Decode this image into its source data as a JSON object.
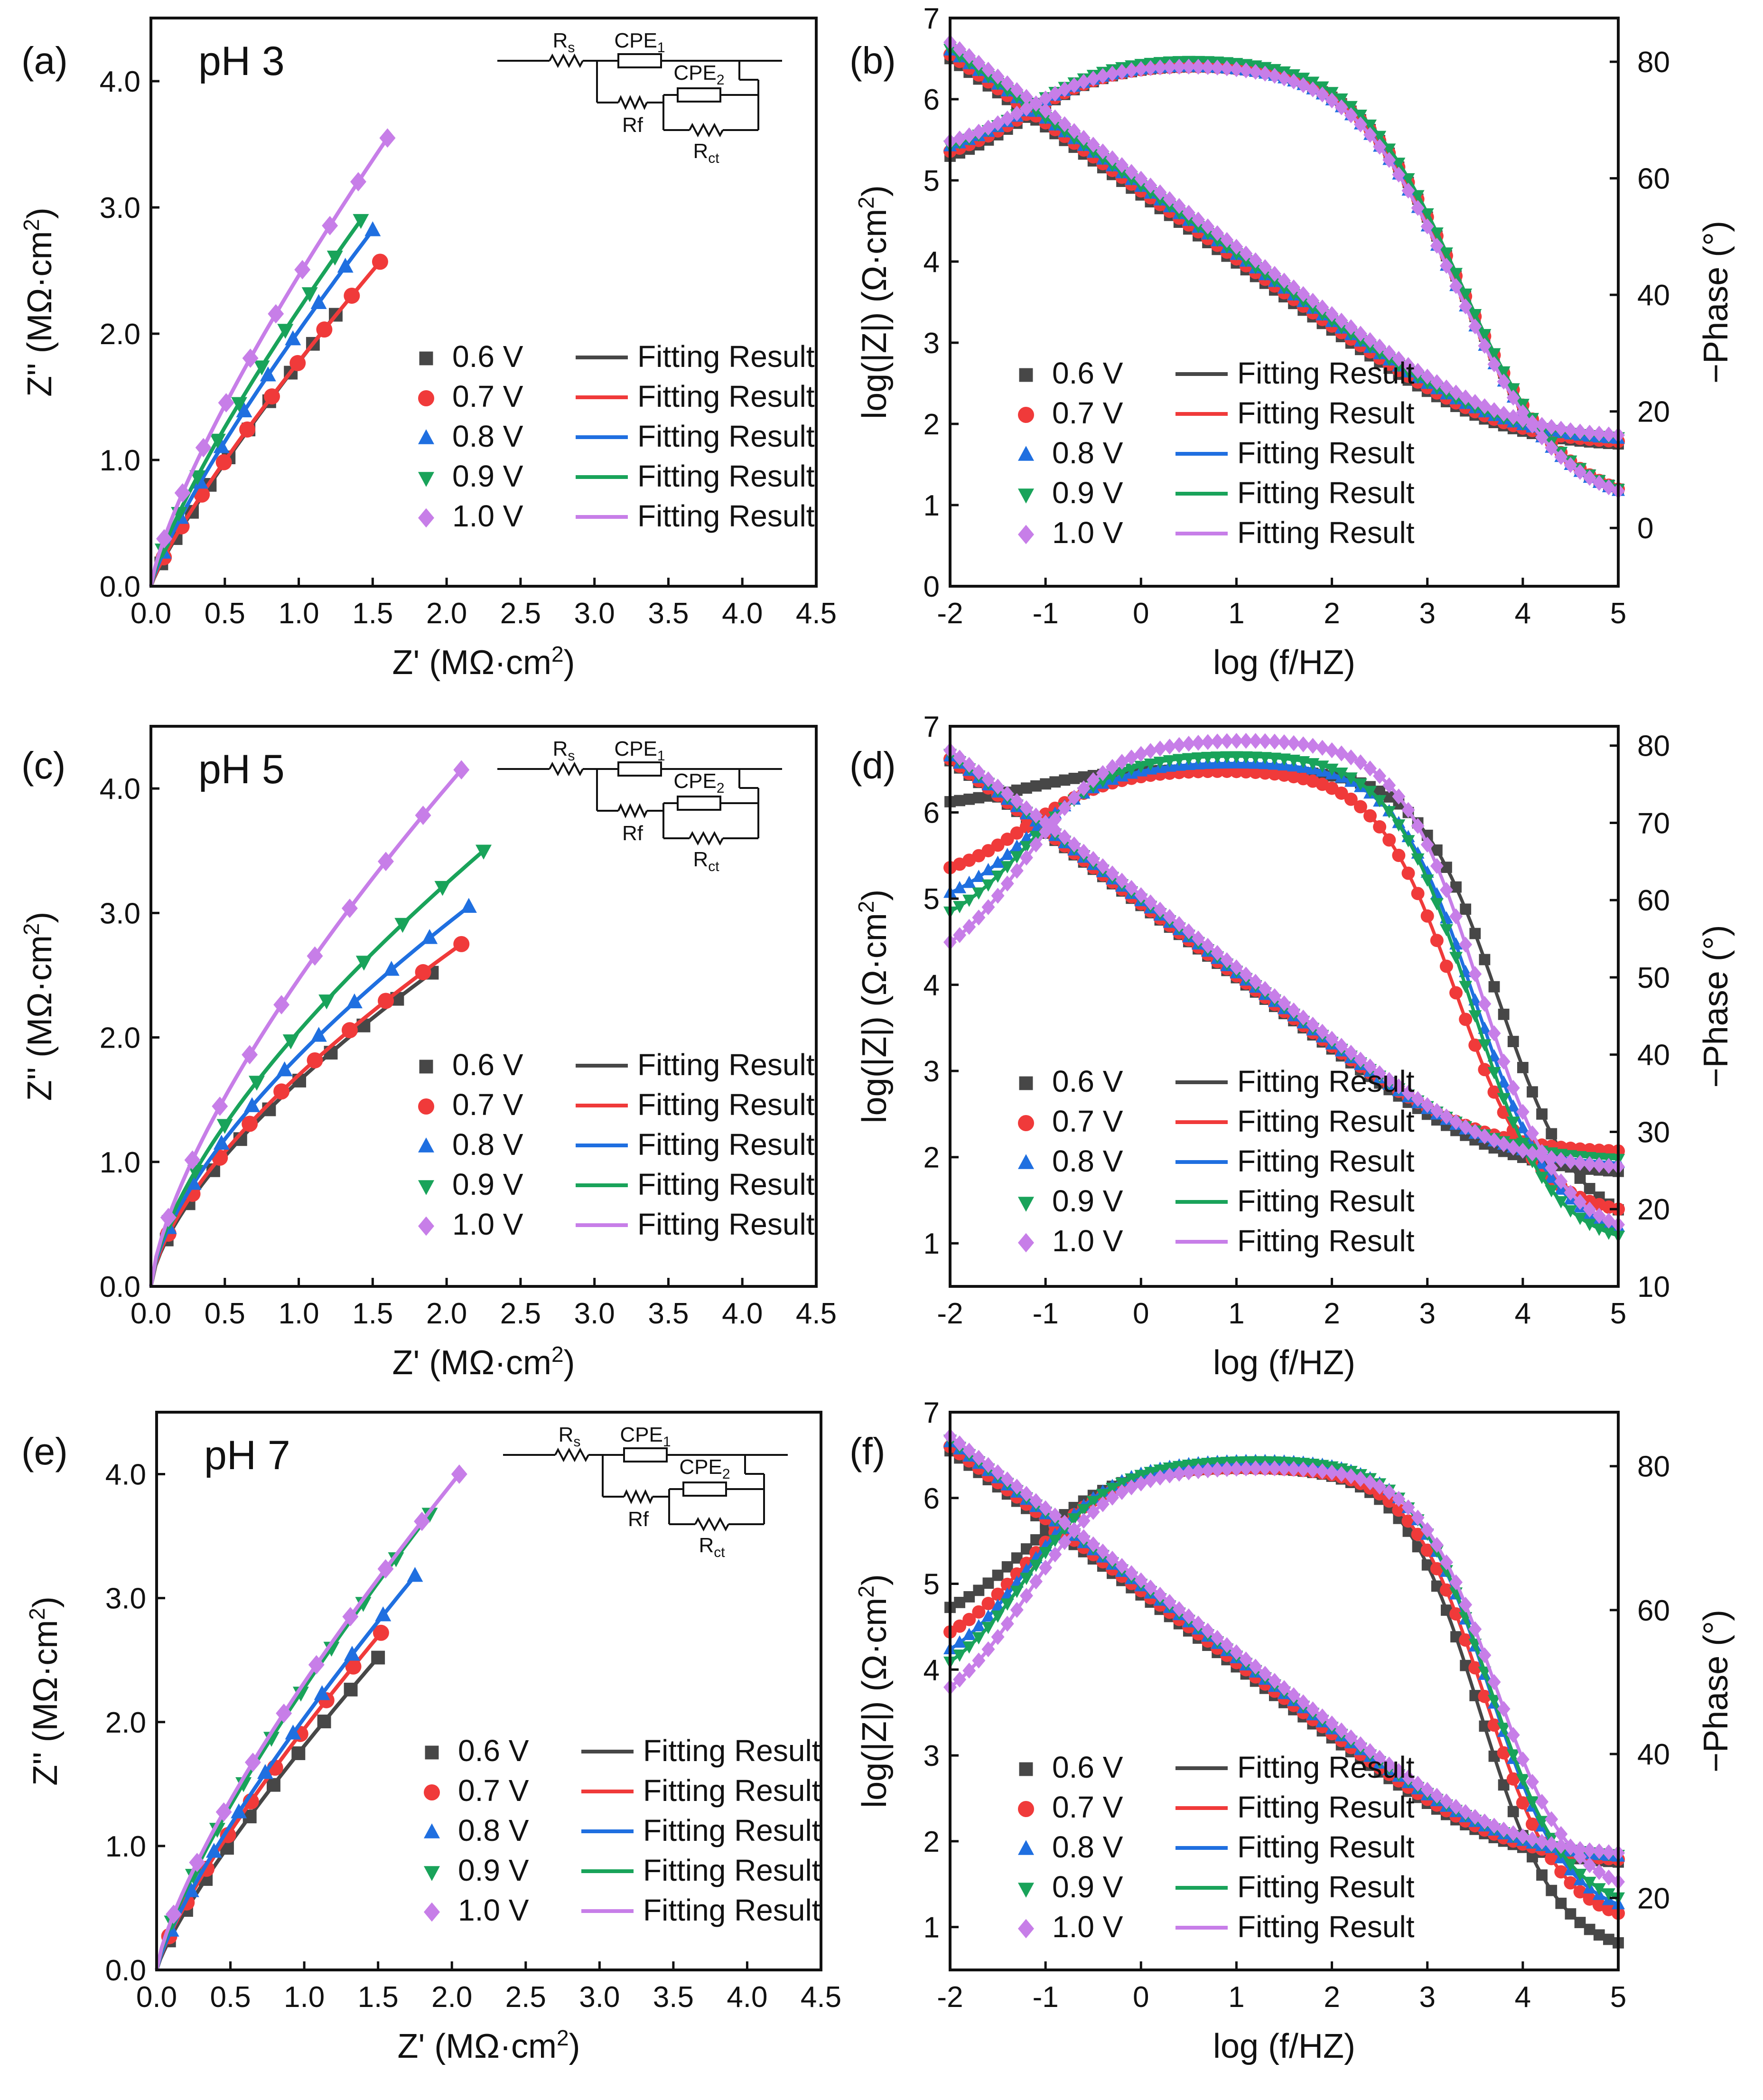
{
  "colors": {
    "0.6 V": "#474747",
    "0.7 V": "#f03a3a",
    "0.8 V": "#1f6fe0",
    "0.9 V": "#19a35a",
    "1.0 V": "#c77ee8"
  },
  "legend": {
    "series": [
      "0.6 V",
      "0.7 V",
      "0.8 V",
      "0.9 V",
      "1.0 V"
    ],
    "fit_label": "Fitting Result",
    "markers": [
      "square",
      "circle",
      "triangle-up",
      "triangle-down",
      "diamond"
    ]
  },
  "circuit": {
    "rs": "Rs",
    "cpe1": "CPE1",
    "cpe2": "CPE2",
    "rf": "Rf",
    "rct": "Rct"
  },
  "chart_data": [
    {
      "panel": "(a)",
      "type": "scatter",
      "title": "pH 3",
      "xlabel": "Z' (MΩ·cm²)",
      "ylabel": "Z'' (MΩ·cm²)",
      "xlim": [
        0,
        4.5
      ],
      "ylim": [
        0,
        4.5
      ],
      "xticks": [
        "0.0",
        "0.5",
        "1.0",
        "1.5",
        "2.0",
        "2.5",
        "3.0",
        "3.5",
        "4.0",
        "4.5"
      ],
      "yticks": [
        "0.0",
        "1.0",
        "2.0",
        "3.0",
        "4.0"
      ],
      "series": [
        {
          "name": "0.6 V",
          "end": [
            1.25,
            2.15
          ],
          "exp": 0.86
        },
        {
          "name": "0.7 V",
          "end": [
            1.55,
            2.57
          ],
          "exp": 0.84
        },
        {
          "name": "0.8 V",
          "end": [
            1.5,
            2.82
          ],
          "exp": 0.82
        },
        {
          "name": "0.9 V",
          "end": [
            1.42,
            2.9
          ],
          "exp": 0.8
        },
        {
          "name": "1.0 V",
          "end": [
            1.6,
            3.55
          ],
          "exp": 0.78
        }
      ]
    },
    {
      "panel": "(b)",
      "type": "line",
      "title": "",
      "xlabel": "log (f/HZ)",
      "ylabel": "log(|Z|) (Ω·cm²)",
      "y2label": "−Phase (°)",
      "xlim": [
        -2,
        5
      ],
      "ylim": [
        0,
        7
      ],
      "y2lim": [
        -10,
        87.5
      ],
      "xticks": [
        "-2",
        "-1",
        "0",
        "1",
        "2",
        "3",
        "4",
        "5"
      ],
      "yticks": [
        "0",
        "1",
        "2",
        "3",
        "4",
        "5",
        "6",
        "7"
      ],
      "y2ticks": [
        "0",
        "20",
        "40",
        "60",
        "80"
      ],
      "series": [
        {
          "name": "0.6 V",
          "Z_low": 6.5,
          "Rs": 1.72,
          "ph_low": 61,
          "ph_mid": 80,
          "ph_high": 3,
          "fc": 3.35,
          "ph_w": 0.55
        },
        {
          "name": "0.7 V",
          "Z_low": 6.55,
          "Rs": 1.75,
          "ph_low": 62,
          "ph_mid": 80,
          "ph_high": 3,
          "fc": 3.35,
          "ph_w": 0.55
        },
        {
          "name": "0.8 V",
          "Z_low": 6.6,
          "Rs": 1.78,
          "ph_low": 63,
          "ph_mid": 80,
          "ph_high": 3,
          "fc": 3.3,
          "ph_w": 0.55
        },
        {
          "name": "0.9 V",
          "Z_low": 6.62,
          "Rs": 1.8,
          "ph_low": 63,
          "ph_mid": 81,
          "ph_high": 3,
          "fc": 3.35,
          "ph_w": 0.55
        },
        {
          "name": "1.0 V",
          "Z_low": 6.7,
          "Rs": 1.82,
          "ph_low": 64,
          "ph_mid": 80,
          "ph_high": 3,
          "fc": 3.3,
          "ph_w": 0.55
        }
      ]
    },
    {
      "panel": "(c)",
      "type": "scatter",
      "title": "pH 5",
      "xlabel": "Z' (MΩ·cm²)",
      "ylabel": "Z'' (MΩ·cm²)",
      "xlim": [
        0,
        4.5
      ],
      "ylim": [
        0,
        4.5
      ],
      "xticks": [
        "0.0",
        "0.5",
        "1.0",
        "1.5",
        "2.0",
        "2.5",
        "3.0",
        "3.5",
        "4.0",
        "4.5"
      ],
      "yticks": [
        "0.0",
        "1.0",
        "2.0",
        "3.0",
        "4.0"
      ],
      "series": [
        {
          "name": "0.6 V",
          "end": [
            1.9,
            2.52
          ],
          "exp": 0.66
        },
        {
          "name": "0.7 V",
          "end": [
            2.1,
            2.75
          ],
          "exp": 0.65
        },
        {
          "name": "0.8 V",
          "end": [
            2.15,
            3.05
          ],
          "exp": 0.65
        },
        {
          "name": "0.9 V",
          "end": [
            2.25,
            3.5
          ],
          "exp": 0.66
        },
        {
          "name": "1.0 V",
          "end": [
            2.1,
            4.15
          ],
          "exp": 0.7
        }
      ]
    },
    {
      "panel": "(d)",
      "type": "line",
      "title": "",
      "xlabel": "log (f/HZ)",
      "ylabel": "log(|Z|) (Ω·cm²)",
      "y2label": "−Phase (°)",
      "xlim": [
        -2,
        5
      ],
      "ylim": [
        0.5,
        7
      ],
      "y2lim": [
        10,
        82.5
      ],
      "xticks": [
        "-2",
        "-1",
        "0",
        "1",
        "2",
        "3",
        "4",
        "5"
      ],
      "yticks": [
        "1",
        "2",
        "3",
        "4",
        "5",
        "6",
        "7"
      ],
      "y2ticks": [
        "10",
        "20",
        "30",
        "40",
        "50",
        "60",
        "70",
        "80"
      ],
      "series": [
        {
          "name": "0.6 V",
          "Z_low": 6.6,
          "Rs": 1.8,
          "ph_low": 72,
          "ph_mid": 77,
          "ph_high": 17,
          "fc": 3.75,
          "ph_w": 0.42
        },
        {
          "name": "0.7 V",
          "Z_low": 6.62,
          "Rs": 2.05,
          "ph_low": 62,
          "ph_mid": 77,
          "ph_high": 19,
          "fc": 3.3,
          "ph_w": 0.42
        },
        {
          "name": "0.8 V",
          "Z_low": 6.65,
          "Rs": 1.9,
          "ph_low": 58,
          "ph_mid": 78,
          "ph_high": 16,
          "fc": 3.5,
          "ph_w": 0.42
        },
        {
          "name": "0.9 V",
          "Z_low": 6.68,
          "Rs": 1.95,
          "ph_low": 55,
          "ph_mid": 79,
          "ph_high": 15,
          "fc": 3.45,
          "ph_w": 0.42
        },
        {
          "name": "1.0 V",
          "Z_low": 6.72,
          "Rs": 1.85,
          "ph_low": 50,
          "ph_mid": 81,
          "ph_high": 16,
          "fc": 3.55,
          "ph_w": 0.42
        }
      ]
    },
    {
      "panel": "(e)",
      "type": "scatter",
      "title": "pH 7",
      "xlabel": "Z' (MΩ·cm²)",
      "ylabel": "Z'' (MΩ·cm²)",
      "xlim": [
        0,
        4.5
      ],
      "ylim": [
        0,
        4.5
      ],
      "xticks": [
        "0.0",
        "0.5",
        "1.0",
        "1.5",
        "2.0",
        "2.5",
        "3.0",
        "3.5",
        "4.0",
        "4.5"
      ],
      "yticks": [
        "0.0",
        "1.0",
        "2.0",
        "3.0",
        "4.0"
      ],
      "series": [
        {
          "name": "0.6 V",
          "end": [
            1.5,
            2.52
          ],
          "exp": 0.82
        },
        {
          "name": "0.7 V",
          "end": [
            1.52,
            2.72
          ],
          "exp": 0.8
        },
        {
          "name": "0.8 V",
          "end": [
            1.75,
            3.18
          ],
          "exp": 0.8
        },
        {
          "name": "0.9 V",
          "end": [
            1.85,
            3.68
          ],
          "exp": 0.78
        },
        {
          "name": "1.0 V",
          "end": [
            2.05,
            4.0
          ],
          "exp": 0.76
        }
      ]
    },
    {
      "panel": "(f)",
      "type": "line",
      "title": "",
      "xlabel": "log (f/HZ)",
      "ylabel": "log(|Z|) (Ω·cm²)",
      "y2label": "−Phase (°)",
      "xlim": [
        -2,
        5
      ],
      "ylim": [
        0.5,
        7
      ],
      "y2lim": [
        10,
        87.5
      ],
      "xticks": [
        "-2",
        "-1",
        "0",
        "1",
        "2",
        "3",
        "4",
        "5"
      ],
      "yticks": [
        "1",
        "2",
        "3",
        "4",
        "5",
        "6",
        "7"
      ],
      "y2ticks": [
        "20",
        "40",
        "60",
        "80"
      ],
      "series": [
        {
          "name": "0.6 V",
          "Z_low": 6.55,
          "Rs": 1.72,
          "ph_low": 57,
          "ph_mid": 80,
          "ph_high": 12,
          "fc": 3.55,
          "ph_w": 0.4
        },
        {
          "name": "0.7 V",
          "Z_low": 6.6,
          "Rs": 1.75,
          "ph_low": 53,
          "ph_mid": 80,
          "ph_high": 16,
          "fc": 3.6,
          "ph_w": 0.4
        },
        {
          "name": "0.8 V",
          "Z_low": 6.65,
          "Rs": 1.78,
          "ph_low": 50,
          "ph_mid": 81,
          "ph_high": 17,
          "fc": 3.65,
          "ph_w": 0.4
        },
        {
          "name": "0.9 V",
          "Z_low": 6.68,
          "Rs": 1.8,
          "ph_low": 48,
          "ph_mid": 81,
          "ph_high": 18,
          "fc": 3.65,
          "ph_w": 0.4
        },
        {
          "name": "1.0 V",
          "Z_low": 6.72,
          "Rs": 1.82,
          "ph_low": 44,
          "ph_mid": 80,
          "ph_high": 20,
          "fc": 3.7,
          "ph_w": 0.4
        }
      ]
    }
  ]
}
